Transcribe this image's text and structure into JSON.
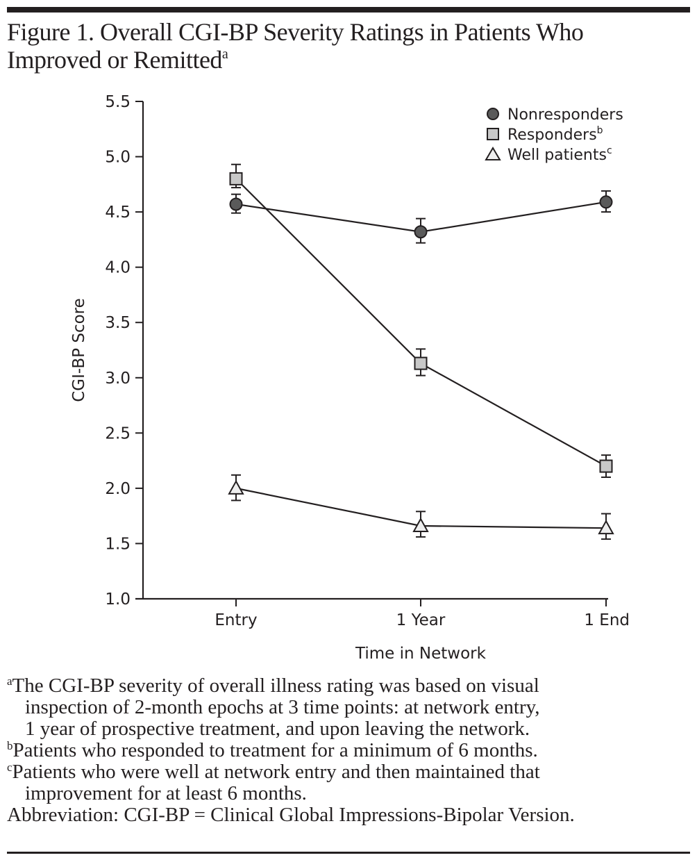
{
  "figure": {
    "title_line1": "Figure 1. Overall CGI-BP Severity Ratings in Patients Who",
    "title_line2": "Improved or Remitted",
    "title_sup": "a"
  },
  "chart_data": {
    "type": "line",
    "title": "Figure 1. Overall CGI-BP Severity Ratings in Patients Who Improved or Remitted",
    "xlabel": "Time in Network",
    "ylabel": "CGI-BP Score",
    "categories": [
      "Entry",
      "1 Year",
      "1 End"
    ],
    "ylim": [
      1.0,
      5.5
    ],
    "yticks": [
      "1.0",
      "1.5",
      "2.0",
      "2.5",
      "3.0",
      "3.5",
      "4.0",
      "4.5",
      "5.0",
      "5.5"
    ],
    "grid": false,
    "legend_position": "top-right",
    "series": [
      {
        "name": "Nonresponders",
        "sup": "",
        "marker": "circle",
        "fill": "#5a5a5a",
        "values": [
          4.57,
          4.32,
          4.59
        ],
        "err_low": [
          4.49,
          4.22,
          4.5
        ],
        "err_high": [
          4.66,
          4.44,
          4.69
        ]
      },
      {
        "name": "Responders",
        "sup": "b",
        "marker": "square",
        "fill": "#c8c8c8",
        "values": [
          4.8,
          3.13,
          2.2
        ],
        "err_low": [
          4.72,
          3.02,
          2.1
        ],
        "err_high": [
          4.93,
          3.26,
          2.3
        ]
      },
      {
        "name": "Well patients",
        "sup": "c",
        "marker": "triangle",
        "fill": "#eeeeee",
        "values": [
          2.0,
          1.66,
          1.64
        ],
        "err_low": [
          1.89,
          1.56,
          1.54
        ],
        "err_high": [
          2.12,
          1.79,
          1.77
        ]
      }
    ]
  },
  "notes": {
    "a_sup": "a",
    "a_line1": "The CGI-BP severity of overall illness rating was based on visual",
    "a_line2": "inspection of 2-month epochs at 3 time points: at network entry,",
    "a_line3": "1 year of prospective treatment, and upon leaving the network.",
    "b_sup": "b",
    "b_line1": "Patients who responded to treatment for a minimum of 6 months.",
    "c_sup": "c",
    "c_line1": "Patients who were well at network entry and then maintained that",
    "c_line2": "improvement for at least 6 months.",
    "abbreviation": "Abbreviation: CGI-BP = Clinical Global Impressions-Bipolar Version."
  },
  "colors": {
    "ink": "#231f20"
  }
}
